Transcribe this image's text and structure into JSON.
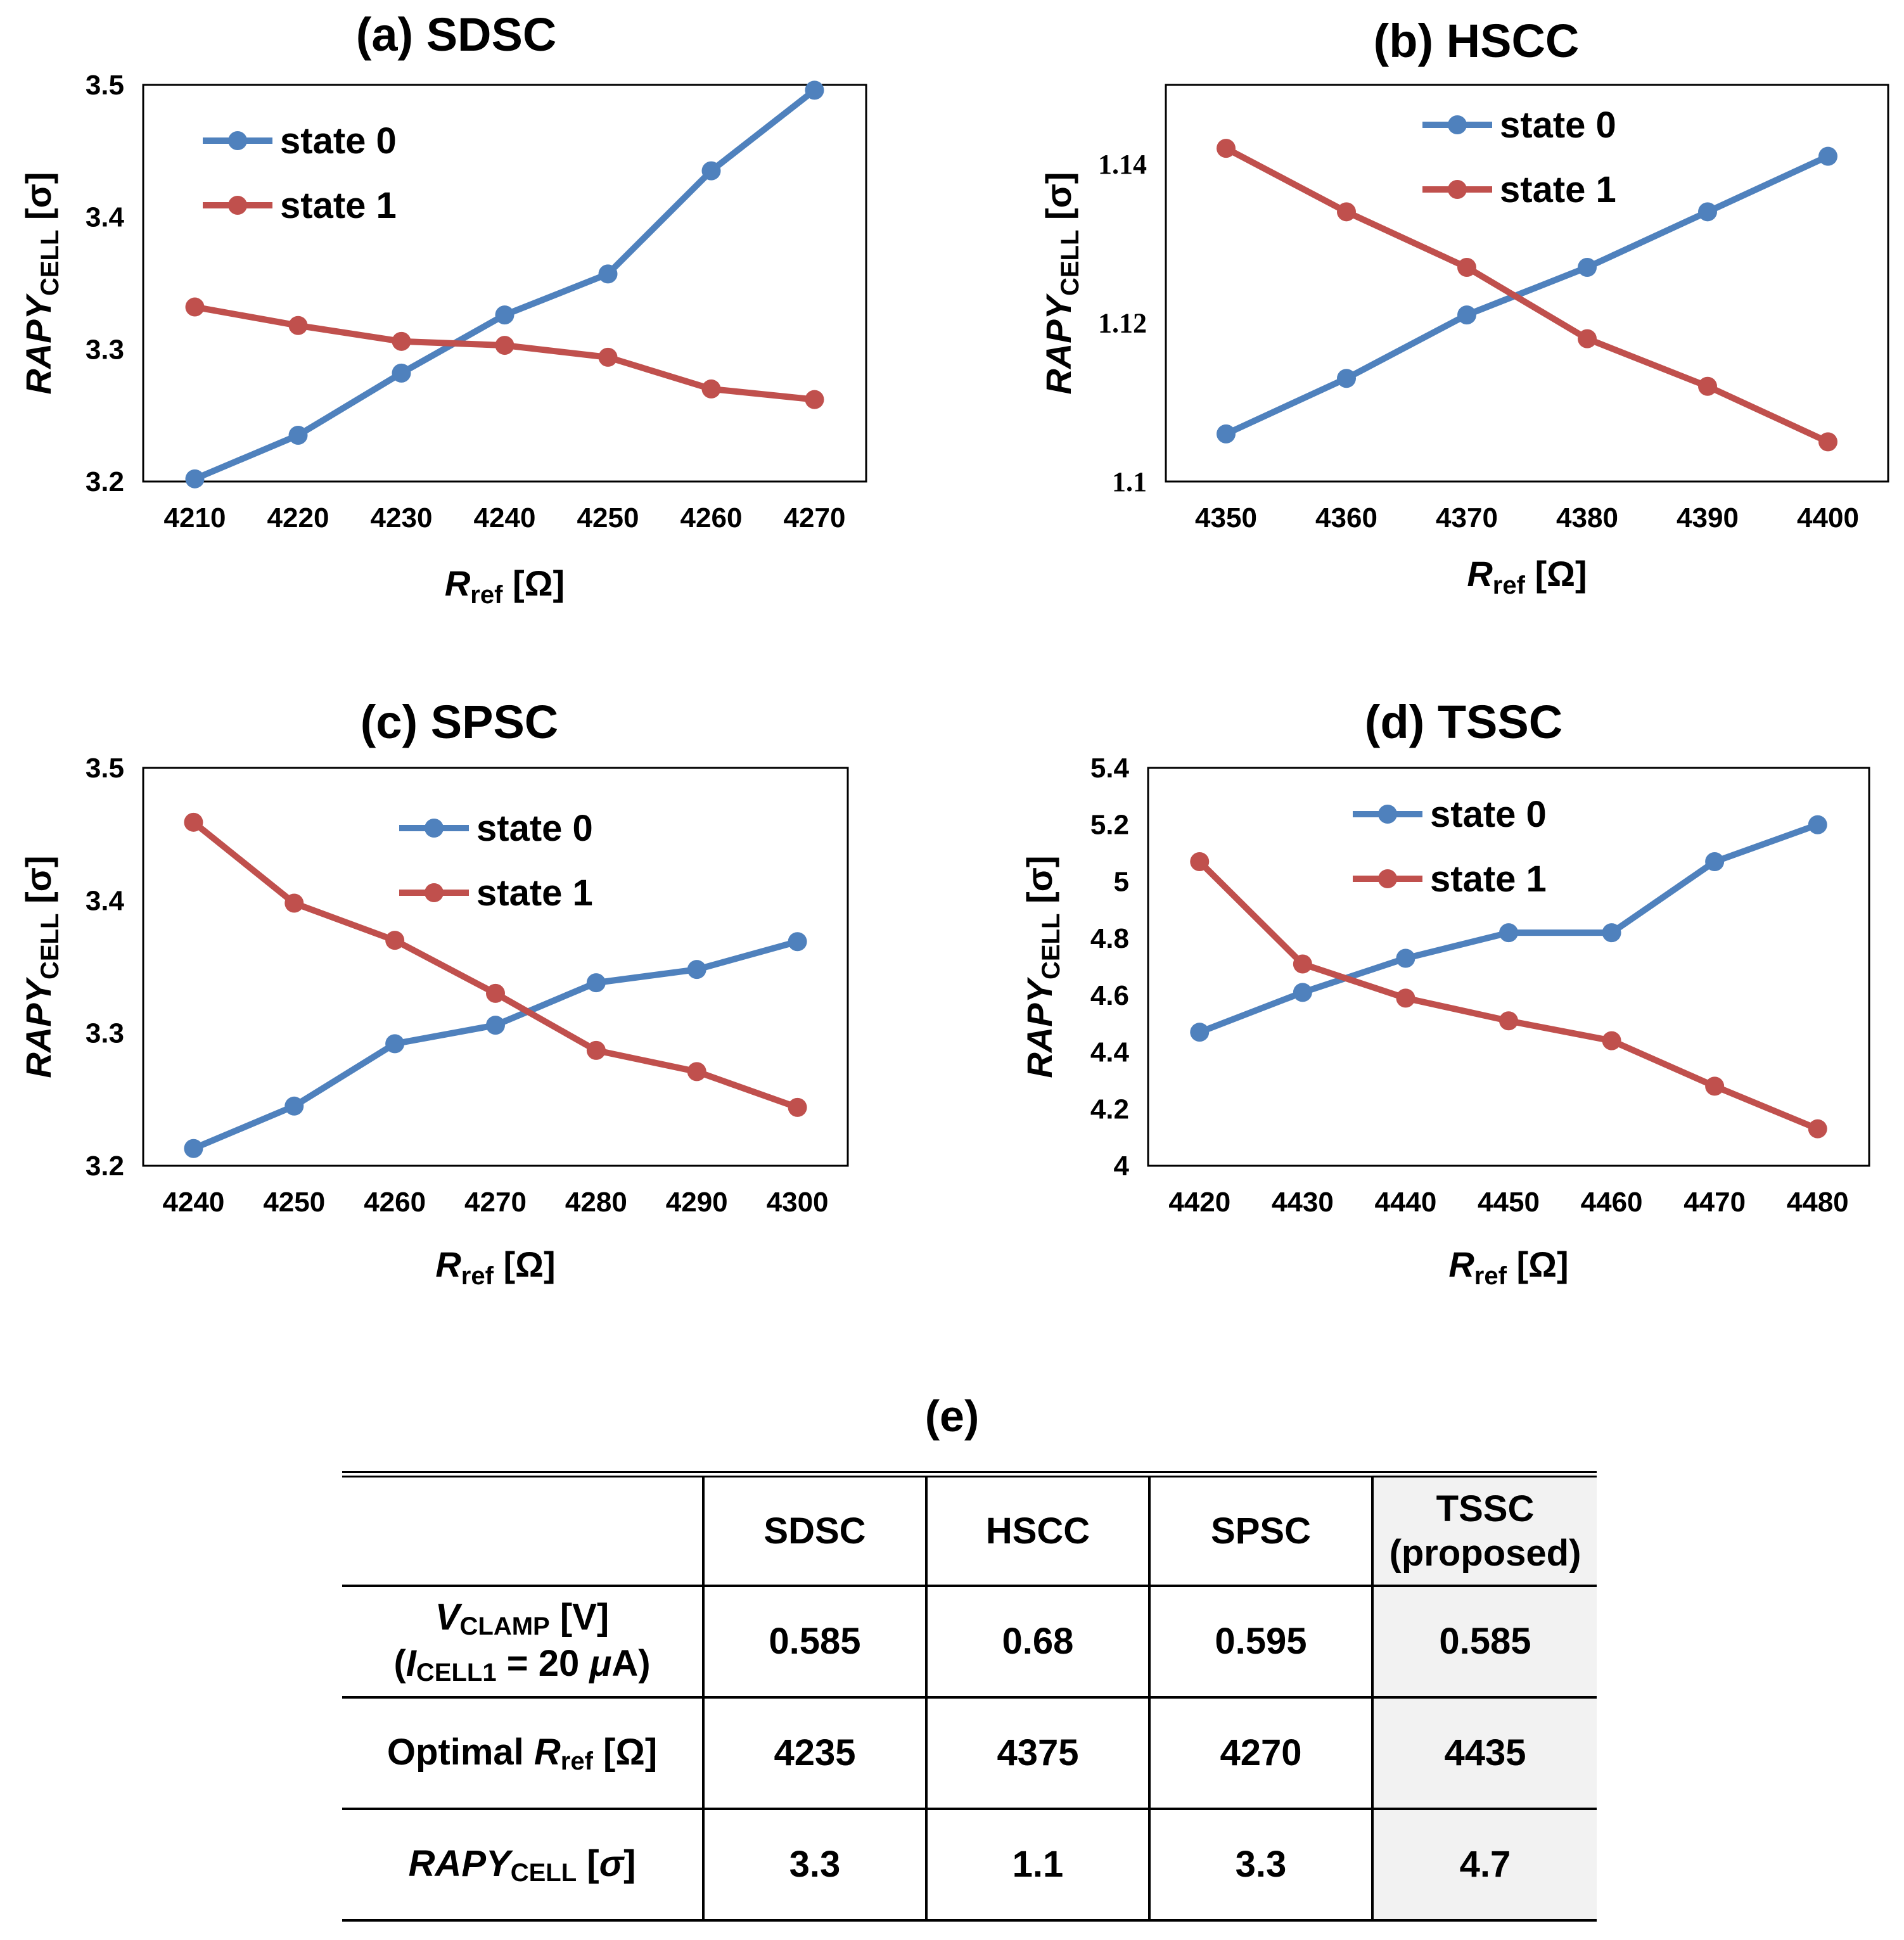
{
  "chart_data": [
    {
      "type": "line",
      "title": "(a) SDSC",
      "xlabel": {
        "main": "R",
        "sub": "ref",
        "unit": " [Ω]"
      },
      "ylabel": {
        "main": "RAPY",
        "sub": "CELL",
        "unit": " [σ]"
      },
      "x": [
        4210,
        4220,
        4230,
        4240,
        4250,
        4260,
        4270
      ],
      "xticks": [
        "4210",
        "4220",
        "4230",
        "4240",
        "4250",
        "4260",
        "4270"
      ],
      "ylim": [
        3.2,
        3.5
      ],
      "yticks": [
        "3.2",
        "3.3",
        "3.4",
        "3.5"
      ],
      "series": [
        {
          "name": "state 0",
          "color": "#4f81bd",
          "values": [
            3.202,
            3.235,
            3.282,
            3.326,
            3.357,
            3.435,
            3.496
          ]
        },
        {
          "name": "state 1",
          "color": "#c0504d",
          "values": [
            3.332,
            3.318,
            3.306,
            3.303,
            3.294,
            3.27,
            3.262
          ]
        }
      ],
      "legend": "top-left"
    },
    {
      "type": "line",
      "title": "(b) HSCC",
      "xlabel": {
        "main": "R",
        "sub": "ref",
        "unit": " [Ω]"
      },
      "ylabel": {
        "main": "RAPY",
        "sub": "CELL",
        "unit": " [σ]"
      },
      "x": [
        4350,
        4360,
        4370,
        4380,
        4390,
        4400
      ],
      "xticks": [
        "4350",
        "4360",
        "4370",
        "4380",
        "4390",
        "4400"
      ],
      "ylim": [
        1.1,
        1.15
      ],
      "yticks": [
        "1.1",
        "1.12",
        "1.14"
      ],
      "series": [
        {
          "name": "state 0",
          "color": "#4f81bd",
          "values": [
            1.106,
            1.113,
            1.121,
            1.127,
            1.134,
            1.141
          ]
        },
        {
          "name": "state 1",
          "color": "#c0504d",
          "values": [
            1.142,
            1.134,
            1.127,
            1.118,
            1.112,
            1.105
          ]
        }
      ],
      "legend": "top-center"
    },
    {
      "type": "line",
      "title": "(c) SPSC",
      "xlabel": {
        "main": "R",
        "sub": "ref",
        "unit": " [Ω]"
      },
      "ylabel": {
        "main": "RAPY",
        "sub": "CELL",
        "unit": " [σ]"
      },
      "x": [
        4240,
        4250,
        4260,
        4270,
        4280,
        4290,
        4300
      ],
      "xticks": [
        "4240",
        "4250",
        "4260",
        "4270",
        "4280",
        "4290",
        "4300"
      ],
      "ylim": [
        3.2,
        3.5
      ],
      "yticks": [
        "3.2",
        "3.3",
        "3.4",
        "3.5"
      ],
      "series": [
        {
          "name": "state 0",
          "color": "#4f81bd",
          "values": [
            3.213,
            3.245,
            3.292,
            3.306,
            3.338,
            3.348,
            3.369
          ]
        },
        {
          "name": "state 1",
          "color": "#c0504d",
          "values": [
            3.459,
            3.398,
            3.37,
            3.33,
            3.287,
            3.271,
            3.244
          ]
        }
      ],
      "legend": "top-center"
    },
    {
      "type": "line",
      "title": "(d) TSSC",
      "xlabel": {
        "main": "R",
        "sub": "ref",
        "unit": " [Ω]"
      },
      "ylabel": {
        "main": "RAPY",
        "sub": "CELL",
        "unit": " [σ]"
      },
      "x": [
        4420,
        4430,
        4440,
        4450,
        4460,
        4470,
        4480
      ],
      "xticks": [
        "4420",
        "4430",
        "4440",
        "4450",
        "4460",
        "4470",
        "4480"
      ],
      "ylim": [
        4,
        5.4
      ],
      "yticks": [
        "4",
        "4.2",
        "4.4",
        "4.6",
        "4.8",
        "5",
        "5.2",
        "5.4"
      ],
      "series": [
        {
          "name": "state 0",
          "color": "#4f81bd",
          "values": [
            4.47,
            4.61,
            4.73,
            4.82,
            4.82,
            5.07,
            5.2
          ]
        },
        {
          "name": "state 1",
          "color": "#c0504d",
          "values": [
            5.07,
            4.71,
            4.59,
            4.51,
            4.44,
            4.28,
            4.13
          ]
        }
      ],
      "legend": "top-center"
    }
  ],
  "table": {
    "title": "(e)",
    "header": {
      "c1": "SDSC",
      "c2": "HSCC",
      "c3": "SPSC",
      "c4_line1": "TSSC",
      "c4_line2": "(proposed)"
    },
    "row_vclamp": {
      "label_v": "V",
      "label_v_sub": "CLAMP",
      "label_v_unit": " [V]",
      "label_paren_open": "(",
      "label_i": "I",
      "label_i_sub": "CELL1",
      "label_i_rest": " = 20 ",
      "label_mu": "μ",
      "label_unit_close": "A)",
      "values": [
        "0.585",
        "0.68",
        "0.595",
        "0.585"
      ]
    },
    "row_rref": {
      "label_pre": "Optimal ",
      "label_r": "R",
      "label_r_sub": "ref",
      "label_unit": " [Ω]",
      "values": [
        "4235",
        "4375",
        "4270",
        "4435"
      ]
    },
    "row_rapy": {
      "label_main": "RAPY",
      "label_sub": "CELL",
      "label_open": " [",
      "label_sigma": "σ",
      "label_close": "]",
      "values": [
        "3.3",
        "1.1",
        "3.3",
        "4.7"
      ]
    }
  }
}
